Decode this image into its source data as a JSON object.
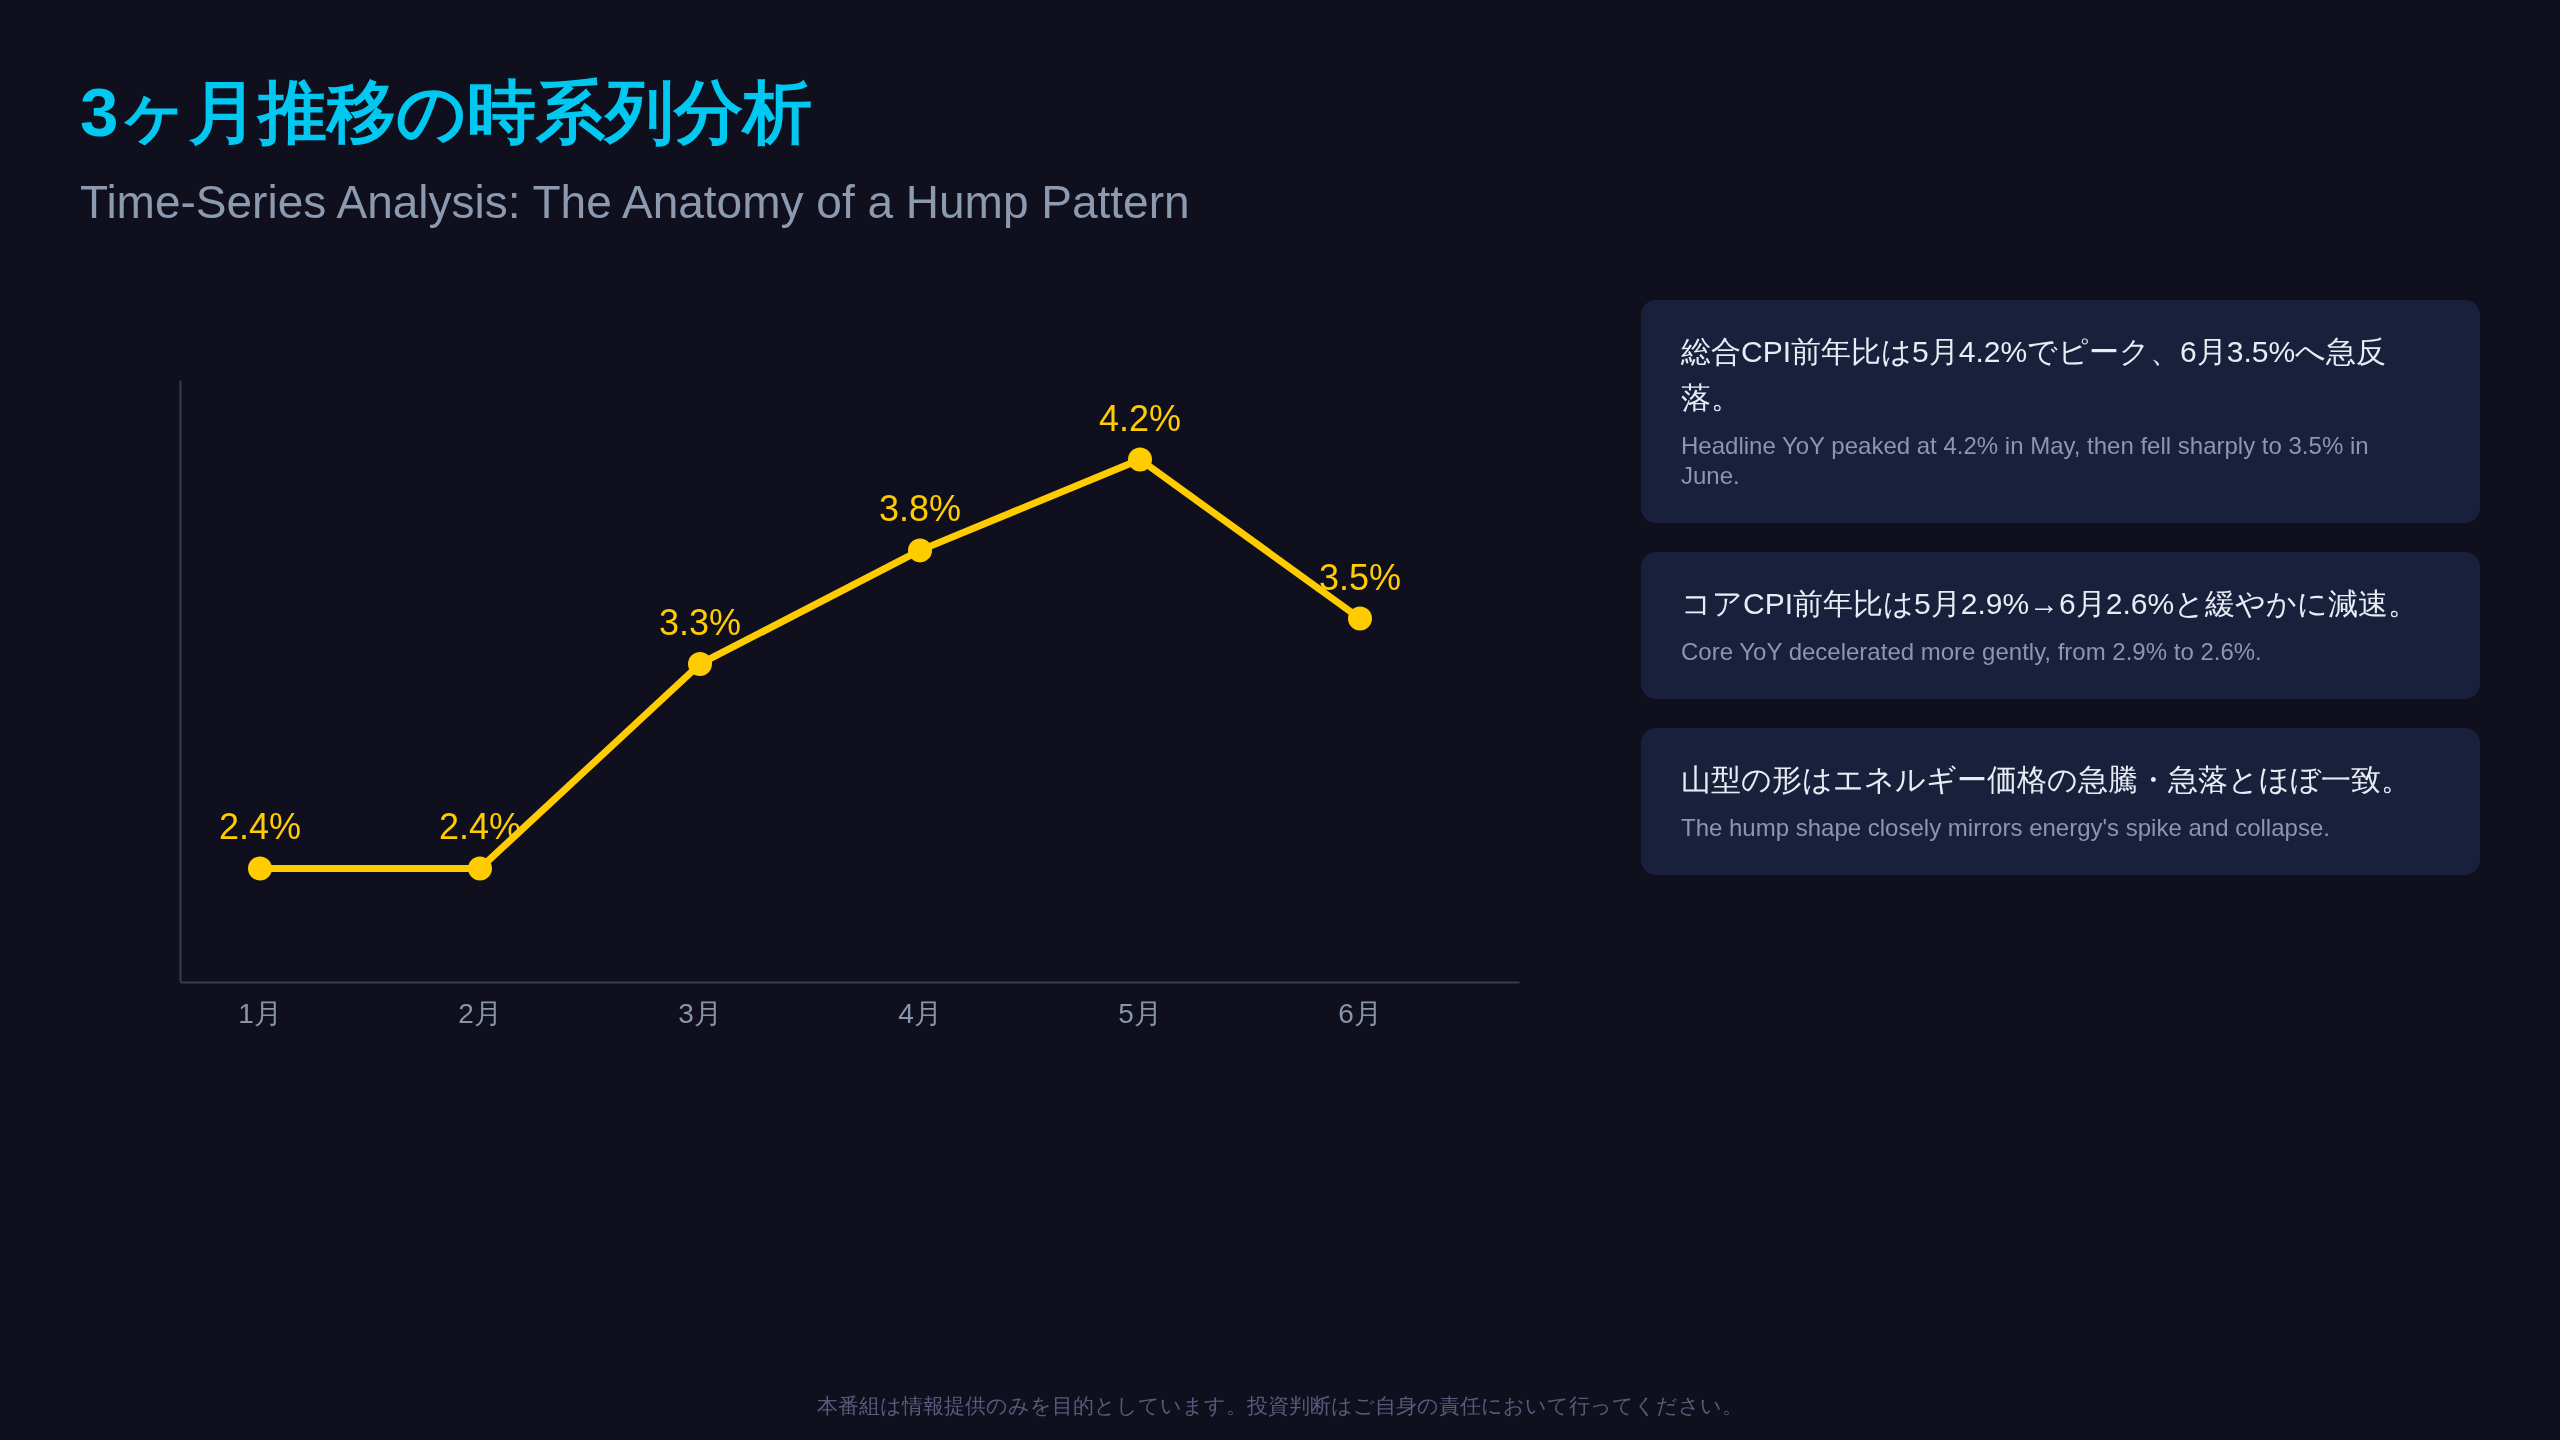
{
  "chart_data": {
    "type": "line",
    "title": "3ヶ月推移の時系列分析",
    "subtitle": "Time-Series Analysis: The Anatomy of a Hump Pattern",
    "categories": [
      "1月",
      "2月",
      "3月",
      "4月",
      "5月",
      "6月"
    ],
    "series": [
      {
        "color": "#ffcc00",
        "values": [
          2.4,
          2.4,
          3.3,
          3.8,
          4.2,
          3.5
        ],
        "value_labels": [
          "2.4%",
          "2.4%",
          "3.3%",
          "3.8%",
          "4.2%",
          "3.5%"
        ]
      }
    ],
    "ylim": [
      1.9,
      4.55
    ],
    "marker": "circle",
    "tick_labels": "x",
    "annotations": [
      "総合CPI前年比は5月4.2%でピーク、6月3.5%へ急反落。",
      "Headline YoY peaked at 4.2% in May, then fell sharply to 3.5% in June.",
      "コアCPI前年比は5月2.9%→6月2.6%と緩やかに減速。",
      "Core YoY decelerated more gently, from 2.9% to 2.6%.",
      "山型の形はエネルギー価格の急騰・急落とほぼ一致。",
      "The hump shape closely mirrors energy's spike and collapse.",
      "本番組は情報提供のみを目的としています。投資判断はご自身の責任において行ってください。"
    ]
  }
}
